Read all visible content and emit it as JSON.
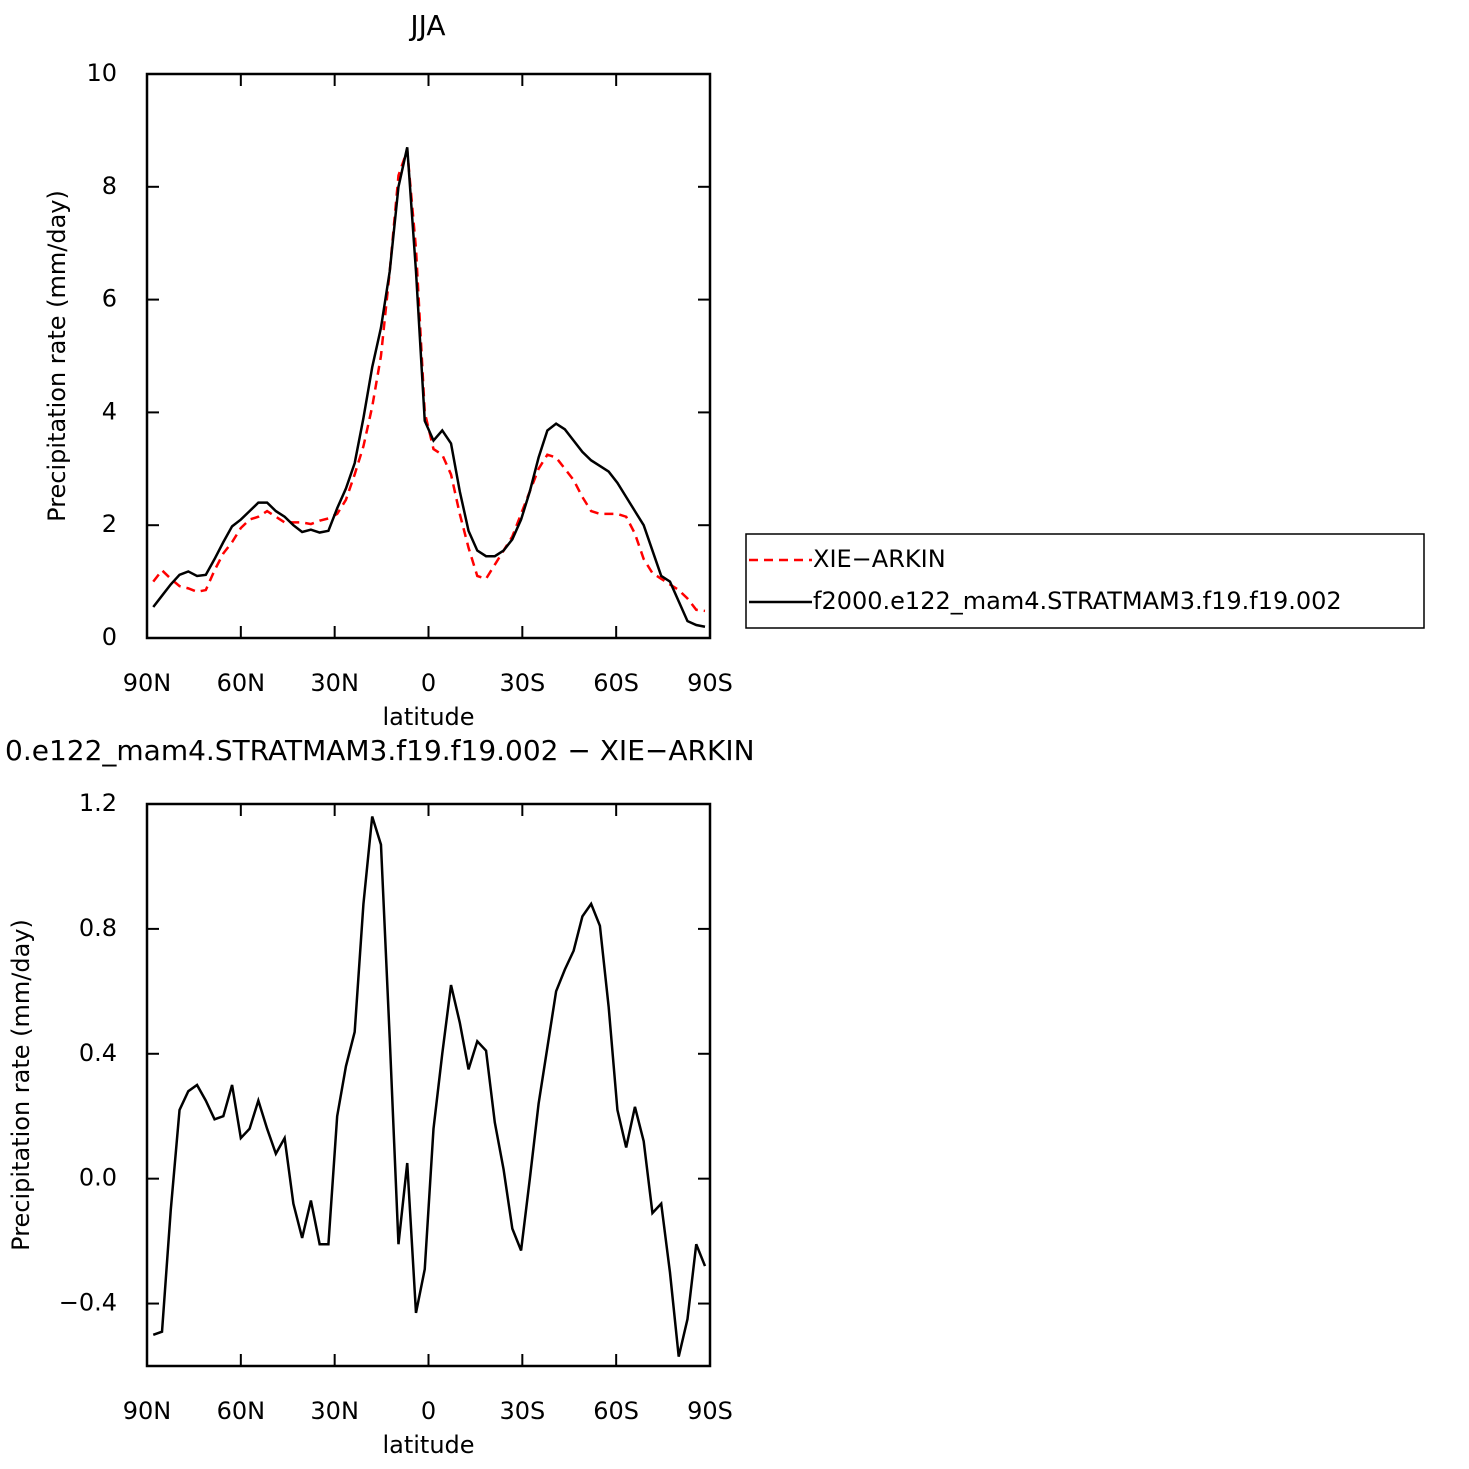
{
  "chart_data": [
    {
      "type": "line",
      "title": "JJA",
      "xlabel": "latitude",
      "ylabel": "Precipitation rate (mm/day)",
      "x": [
        88,
        85.2,
        82.4,
        79.6,
        76.8,
        74,
        71.2,
        68.4,
        65.6,
        62.8,
        60,
        57.2,
        54.4,
        51.6,
        48.8,
        46,
        43.2,
        40.4,
        37.6,
        34.8,
        32,
        29.2,
        26.4,
        23.6,
        20.8,
        18,
        15.2,
        12.4,
        9.6,
        6.8,
        4,
        1.2,
        -1.6,
        -4.4,
        -7.2,
        -10,
        -12.8,
        -15.6,
        -18.4,
        -21.2,
        -24,
        -26.8,
        -29.6,
        -32.4,
        -35.2,
        -38,
        -40.8,
        -43.6,
        -46.4,
        -49.2,
        -52,
        -54.8,
        -57.6,
        -60.4,
        -63.2,
        -66,
        -68.8,
        -71.6,
        -74.4,
        -77.2,
        -80,
        -82.8,
        -85.6,
        -88.4
      ],
      "series": [
        {
          "name": "XIE−ARKIN",
          "color": "#ff0000",
          "linestyle": "dashed",
          "values": [
            1.0,
            1.2,
            1.05,
            0.92,
            0.88,
            0.82,
            0.85,
            1.2,
            1.5,
            1.7,
            1.95,
            2.1,
            2.15,
            2.25,
            2.15,
            2.05,
            2.05,
            2.05,
            2.02,
            2.08,
            2.12,
            2.2,
            2.45,
            2.9,
            3.4,
            4.1,
            5.0,
            6.5,
            8.2,
            8.65,
            6.9,
            4.0,
            3.35,
            3.25,
            2.9,
            2.2,
            1.6,
            1.1,
            1.05,
            1.3,
            1.55,
            1.8,
            2.2,
            2.6,
            3.0,
            3.25,
            3.2,
            3.0,
            2.8,
            2.5,
            2.25,
            2.2,
            2.2,
            2.2,
            2.15,
            1.85,
            1.4,
            1.15,
            1.05,
            0.95,
            0.85,
            0.7,
            0.5,
            0.48
          ]
        },
        {
          "name": "f2000.e122_mam4.STRATMAM3.f19.f19.002",
          "color": "#000000",
          "linestyle": "solid",
          "values": [
            0.55,
            0.75,
            0.95,
            1.12,
            1.18,
            1.1,
            1.12,
            1.4,
            1.7,
            1.98,
            2.1,
            2.25,
            2.4,
            2.4,
            2.25,
            2.15,
            2.0,
            1.88,
            1.92,
            1.87,
            1.9,
            2.3,
            2.65,
            3.1,
            3.9,
            4.8,
            5.5,
            6.5,
            8.0,
            8.7,
            6.5,
            3.85,
            3.5,
            3.68,
            3.45,
            2.6,
            1.9,
            1.55,
            1.45,
            1.45,
            1.55,
            1.75,
            2.1,
            2.6,
            3.2,
            3.68,
            3.8,
            3.7,
            3.5,
            3.3,
            3.15,
            3.05,
            2.95,
            2.75,
            2.5,
            2.25,
            2.0,
            1.55,
            1.1,
            1.0,
            0.65,
            0.3,
            0.23,
            0.2
          ]
        }
      ],
      "xlim": [
        90,
        -90
      ],
      "xticks": [
        {
          "value": 90,
          "label": "90N"
        },
        {
          "value": 60,
          "label": "60N"
        },
        {
          "value": 30,
          "label": "30N"
        },
        0,
        {
          "value": -30,
          "label": "30S"
        },
        {
          "value": -60,
          "label": "60S"
        },
        {
          "value": -90,
          "label": "90S"
        }
      ],
      "ylim": [
        0,
        10
      ],
      "yticks": [
        0,
        2,
        4,
        6,
        8,
        10
      ],
      "legend": "right"
    },
    {
      "type": "line",
      "title": "0.e122_mam4.STRATMAM3.f19.f19.002 − XIE−ARKIN",
      "xlabel": "latitude",
      "ylabel": "Precipitation rate (mm/day)",
      "x": [
        88,
        85.2,
        82.4,
        79.6,
        76.8,
        74,
        71.2,
        68.4,
        65.6,
        62.8,
        60,
        57.2,
        54.4,
        51.6,
        48.8,
        46,
        43.2,
        40.4,
        37.6,
        34.8,
        32,
        29.2,
        26.4,
        23.6,
        20.8,
        18,
        15.2,
        12.4,
        9.6,
        6.8,
        4,
        1.2,
        -1.6,
        -4.4,
        -7.2,
        -10,
        -12.8,
        -15.6,
        -18.4,
        -21.2,
        -24,
        -26.8,
        -29.6,
        -32.4,
        -35.2,
        -38,
        -40.8,
        -43.6,
        -46.4,
        -49.2,
        -52,
        -54.8,
        -57.6,
        -60.4,
        -63.2,
        -66,
        -68.8,
        -71.6,
        -74.4,
        -77.2,
        -80,
        -82.8,
        -85.6,
        -88.4
      ],
      "series": [
        {
          "color": "#000000",
          "linestyle": "solid",
          "values": [
            -0.5,
            -0.49,
            -0.1,
            0.22,
            0.28,
            0.3,
            0.25,
            0.19,
            0.2,
            0.3,
            0.13,
            0.16,
            0.25,
            0.16,
            0.08,
            0.13,
            -0.08,
            -0.19,
            -0.07,
            -0.21,
            -0.21,
            0.2,
            0.36,
            0.47,
            0.88,
            1.16,
            1.07,
            0.45,
            -0.21,
            0.05,
            -0.43,
            -0.29,
            0.16,
            0.4,
            0.62,
            0.5,
            0.35,
            0.44,
            0.41,
            0.18,
            0.03,
            -0.16,
            -0.23,
            0.0,
            0.24,
            0.42,
            0.6,
            0.67,
            0.73,
            0.84,
            0.88,
            0.81,
            0.55,
            0.22,
            0.1,
            0.23,
            0.12,
            -0.11,
            -0.08,
            -0.3,
            -0.57,
            -0.45,
            -0.21,
            -0.28
          ]
        }
      ],
      "xlim": [
        90,
        -90
      ],
      "xticks": [
        {
          "value": 90,
          "label": "90N"
        },
        {
          "value": 60,
          "label": "60N"
        },
        {
          "value": 30,
          "label": "30N"
        },
        0,
        {
          "value": -30,
          "label": "30S"
        },
        {
          "value": -60,
          "label": "60S"
        },
        {
          "value": -90,
          "label": "90S"
        }
      ],
      "ylim": [
        -0.6,
        1.2
      ],
      "yticks": [
        {
          "value": -0.4,
          "label": "−0.4"
        },
        {
          "value": 0,
          "label": "0.0"
        },
        0.4,
        0.8,
        1.2
      ]
    }
  ]
}
